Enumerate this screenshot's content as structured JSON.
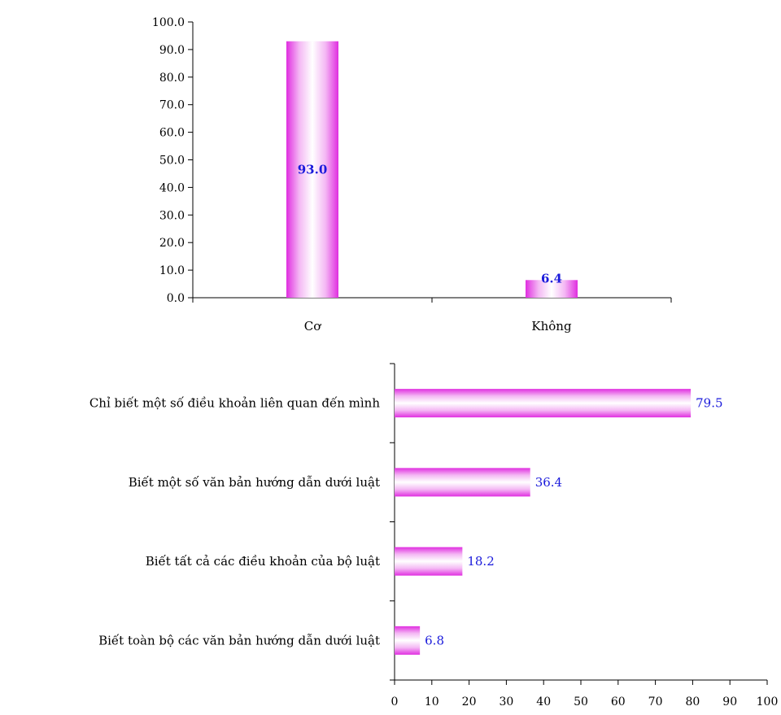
{
  "colors": {
    "bar_edge": "#e02ee0",
    "bar_mid": "#f4b8f4",
    "bar_center": "#ffffff",
    "value_label": "#1a1adb",
    "axis": "#000000"
  },
  "chart_data": [
    {
      "type": "bar",
      "orientation": "vertical",
      "categories": [
        "Cơ",
        "Không"
      ],
      "values": [
        93.0,
        6.4
      ],
      "value_labels": [
        "93.0",
        "6.4"
      ],
      "yticks": [
        "0.0",
        "10.0",
        "20.0",
        "30.0",
        "40.0",
        "50.0",
        "60.0",
        "70.0",
        "80.0",
        "90.0",
        "100.0"
      ],
      "ylim": [
        0,
        100
      ],
      "grid": false,
      "legend": "none"
    },
    {
      "type": "bar",
      "orientation": "horizontal",
      "categories": [
        "Chỉ biết một số điều khoản liên quan đến mình",
        "Biết một số văn bản hướng dẫn dưới luật",
        "Biết tất cả các điều khoản của bộ luật",
        "Biết toàn bộ các văn bản hướng dẫn dưới luật"
      ],
      "values": [
        79.5,
        36.4,
        18.2,
        6.8
      ],
      "value_labels": [
        "79.5",
        "36.4",
        "18.2",
        "6.8"
      ],
      "xticks": [
        "0",
        "10",
        "20",
        "30",
        "40",
        "50",
        "60",
        "70",
        "80",
        "90",
        "100"
      ],
      "xlim": [
        0,
        100
      ],
      "grid": false,
      "legend": "none"
    }
  ]
}
